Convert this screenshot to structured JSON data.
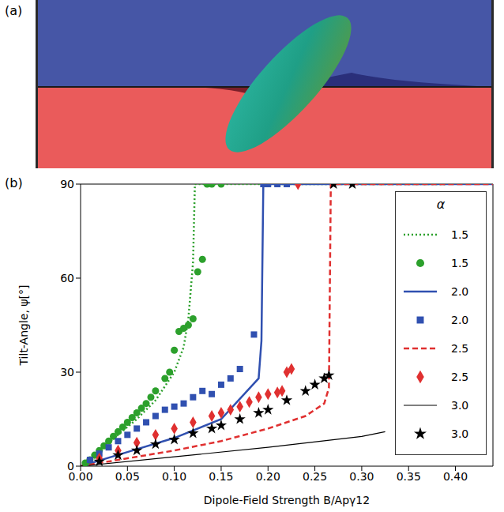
{
  "image_panel": {
    "label": "(a)"
  },
  "chart_data": {
    "type": "line",
    "label": "(b)",
    "x_label": "Dipole-Field Strength B/Apγ12",
    "y_label": "Tilt-Angle, ψ[°]",
    "xlim": [
      0,
      0.44
    ],
    "ylim": [
      0,
      90
    ],
    "xticks": [
      {
        "value": 0,
        "label": "0.00"
      },
      {
        "value": 0.05,
        "label": "0.05"
      },
      {
        "value": 0.1,
        "label": "0.10"
      },
      {
        "value": 0.15,
        "label": "0.15"
      },
      {
        "value": 0.2,
        "label": "0.20"
      },
      {
        "value": 0.25,
        "label": "0.25"
      },
      {
        "value": 0.3,
        "label": "0.30"
      },
      {
        "value": 0.35,
        "label": "0.35"
      },
      {
        "value": 0.4,
        "label": "0.40"
      }
    ],
    "yticks": [
      0,
      30,
      60,
      90
    ],
    "grid": false,
    "legend": "right",
    "legend_title": "α",
    "series": [
      {
        "name": "1.5",
        "type": "line",
        "color": "#2ca02c",
        "line_style": "dotted",
        "x": [
          0,
          0.02,
          0.04,
          0.06,
          0.08,
          0.1,
          0.11,
          0.115,
          0.12,
          0.122,
          0.39
        ],
        "values": [
          0,
          5,
          10,
          15,
          21,
          30,
          38,
          47,
          65,
          90,
          90
        ]
      },
      {
        "name": "1.5",
        "type": "scatter",
        "color": "#2ca02c",
        "marker": "circle",
        "x": [
          0.005,
          0.01,
          0.015,
          0.02,
          0.025,
          0.03,
          0.035,
          0.04,
          0.045,
          0.05,
          0.055,
          0.06,
          0.065,
          0.07,
          0.075,
          0.08,
          0.09,
          0.095,
          0.1,
          0.105,
          0.11,
          0.115,
          0.12,
          0.125,
          0.13,
          0.135,
          0.14,
          0.15
        ],
        "values": [
          1,
          2,
          3.5,
          5,
          6.5,
          8,
          9.5,
          11,
          12.5,
          14,
          15.5,
          17,
          18.5,
          20,
          22,
          24,
          28,
          30,
          37,
          43,
          44,
          45,
          47,
          62,
          66,
          90,
          90,
          90
        ]
      },
      {
        "name": "2.0",
        "type": "line",
        "color": "#3050b0",
        "line_style": "solid",
        "x": [
          0,
          0.05,
          0.1,
          0.15,
          0.19,
          0.193,
          0.195,
          0.44
        ],
        "values": [
          0,
          4.5,
          9,
          15,
          28,
          40,
          90,
          90
        ]
      },
      {
        "name": "2.0",
        "type": "scatter",
        "color": "#3050b0",
        "marker": "square",
        "x": [
          0.01,
          0.02,
          0.03,
          0.04,
          0.05,
          0.06,
          0.07,
          0.08,
          0.09,
          0.1,
          0.11,
          0.12,
          0.13,
          0.14,
          0.15,
          0.16,
          0.17,
          0.185,
          0.195,
          0.2,
          0.21,
          0.22
        ],
        "values": [
          2,
          4,
          6,
          8,
          10,
          12,
          14,
          16,
          18,
          19,
          20,
          22,
          24,
          23,
          26,
          28,
          31,
          42,
          90,
          90,
          90,
          90
        ]
      },
      {
        "name": "2.5",
        "type": "line",
        "color": "#e03030",
        "line_style": "dashed",
        "x": [
          0,
          0.05,
          0.1,
          0.15,
          0.2,
          0.24,
          0.26,
          0.265,
          0.267,
          0.44
        ],
        "values": [
          0,
          2.5,
          5,
          8,
          12,
          16,
          20,
          25,
          90,
          90
        ]
      },
      {
        "name": "2.5",
        "type": "scatter",
        "color": "#e03030",
        "marker": "diamond",
        "x": [
          0.02,
          0.04,
          0.06,
          0.08,
          0.1,
          0.12,
          0.14,
          0.15,
          0.16,
          0.17,
          0.18,
          0.19,
          0.2,
          0.21,
          0.215,
          0.22,
          0.225,
          0.232
        ],
        "values": [
          2.5,
          5,
          7.5,
          10,
          12,
          14,
          16,
          17,
          18,
          19,
          20.5,
          22,
          23,
          23.5,
          24,
          30,
          31,
          90
        ]
      },
      {
        "name": "3.0",
        "type": "line",
        "color": "#000000",
        "line_style": "solid",
        "x": [
          0,
          0.1,
          0.2,
          0.3,
          0.325
        ],
        "values": [
          0,
          3,
          6,
          9.5,
          11
        ]
      },
      {
        "name": "3.0",
        "type": "scatter",
        "color": "#000000",
        "marker": "star",
        "x": [
          0.02,
          0.04,
          0.06,
          0.08,
          0.1,
          0.12,
          0.14,
          0.15,
          0.17,
          0.19,
          0.2,
          0.22,
          0.24,
          0.25,
          0.26,
          0.265,
          0.27,
          0.29
        ],
        "values": [
          1.5,
          3.5,
          5,
          7,
          8.5,
          10.5,
          12,
          13,
          15,
          17,
          18,
          21,
          24,
          26,
          28,
          29,
          90,
          90
        ]
      }
    ]
  }
}
